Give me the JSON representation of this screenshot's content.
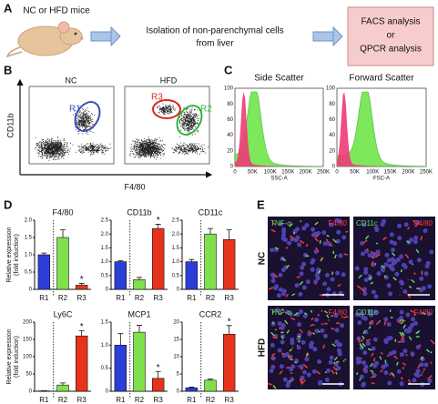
{
  "panels": {
    "A": {
      "letter": "A",
      "source": "NC or HFD mice",
      "step": [
        "Isolation of non-parenchymal cells",
        "from liver"
      ],
      "result": [
        "FACS analysis",
        "or",
        "QPCR analysis"
      ]
    },
    "B": {
      "letter": "B",
      "groups": [
        "NC",
        "HFD"
      ],
      "y_axis": "CD11b",
      "x_axis": "F4/80",
      "gates": [
        "R1",
        "R3",
        "R2"
      ]
    },
    "C": {
      "letter": "C",
      "plots": [
        {
          "title": "Side Scatter",
          "x_axis": "SSC-A"
        },
        {
          "title": "Forward Scatter",
          "x_axis": "FSC-A"
        }
      ],
      "yticks": [
        "0",
        "20",
        "40",
        "60",
        "80",
        "100"
      ],
      "xticks": [
        "0",
        "50K",
        "100K",
        "150K",
        "200K",
        "250K"
      ]
    },
    "D": {
      "letter": "D"
    },
    "E": {
      "letter": "E",
      "rows": [
        "NC",
        "HFD"
      ],
      "stains": [
        [
          "TNF-α",
          "F4/80"
        ],
        [
          "CD11c",
          "F4/80"
        ]
      ]
    }
  },
  "chart_data": [
    {
      "type": "bar",
      "title": "F4/80",
      "ylabel": [
        "Relative expression",
        "(fold induction)"
      ],
      "categories": [
        "R1",
        "R2",
        "R3"
      ],
      "values": [
        1.0,
        1.5,
        0.12
      ],
      "errors": [
        0.05,
        0.22,
        0.05
      ],
      "significance": [
        null,
        null,
        "*"
      ],
      "colors": [
        "#2b3fd8",
        "#80e04c",
        "#e6341c"
      ],
      "ylim": [
        0,
        2
      ],
      "yticks": [
        0,
        0.5,
        {
          "value": 1,
          "label": "1.0"
        },
        1.5,
        {
          "value": 2,
          "label": "2.0"
        }
      ]
    },
    {
      "type": "bar",
      "title": "CD11b",
      "categories": [
        "R1",
        "R2",
        "R3"
      ],
      "values": [
        1.0,
        0.35,
        2.2
      ],
      "errors": [
        0.03,
        0.08,
        0.15
      ],
      "significance": [
        null,
        null,
        "*"
      ],
      "colors": [
        "#2b3fd8",
        "#80e04c",
        "#e6341c"
      ],
      "ylim": [
        0,
        2.5
      ],
      "yticks": [
        0,
        0.5,
        {
          "value": 1,
          "label": "1.0"
        },
        1.5,
        {
          "value": 2,
          "label": "2.0"
        },
        2.5
      ]
    },
    {
      "type": "bar",
      "title": "CD11c",
      "categories": [
        "R1",
        "R2",
        "R3"
      ],
      "values": [
        1.0,
        2.0,
        1.8
      ],
      "errors": [
        0.08,
        0.2,
        0.35
      ],
      "significance": [
        null,
        null,
        null
      ],
      "colors": [
        "#2b3fd8",
        "#80e04c",
        "#e6341c"
      ],
      "ylim": [
        0,
        2.5
      ],
      "yticks": [
        0,
        0.5,
        {
          "value": 1,
          "label": "1.0"
        },
        1.5,
        {
          "value": 2,
          "label": "2.0"
        },
        2.5
      ]
    },
    {
      "type": "bar",
      "title": "Ly6C",
      "ylabel": [
        "Relative expression",
        "(fold induction)"
      ],
      "categories": [
        "R1",
        "R2",
        "R3"
      ],
      "values": [
        1,
        18,
        160
      ],
      "errors": [
        0.5,
        6,
        15
      ],
      "significance": [
        null,
        null,
        "*"
      ],
      "colors": [
        "#2b3fd8",
        "#80e04c",
        "#e6341c"
      ],
      "ylim": [
        0,
        200
      ],
      "yticks": [
        0,
        50,
        100,
        150,
        200
      ]
    },
    {
      "type": "bar",
      "title": "MCP1",
      "categories": [
        "R1",
        "R2",
        "R3"
      ],
      "values": [
        1.0,
        1.28,
        0.28
      ],
      "errors": [
        0.25,
        0.15,
        0.15
      ],
      "significance": [
        null,
        null,
        "*"
      ],
      "colors": [
        "#2b3fd8",
        "#80e04c",
        "#e6341c"
      ],
      "ylim": [
        0,
        1.5
      ],
      "yticks": [
        0,
        0.5,
        {
          "value": 1,
          "label": "1.0"
        },
        1.5
      ]
    },
    {
      "type": "bar",
      "title": "CCR2",
      "categories": [
        "R1",
        "R2",
        "R3"
      ],
      "values": [
        1,
        3.2,
        16.5
      ],
      "errors": [
        0.2,
        0.3,
        2.5
      ],
      "significance": [
        null,
        null,
        "*"
      ],
      "colors": [
        "#2b3fd8",
        "#80e04c",
        "#e6341c"
      ],
      "ylim": [
        0,
        20
      ],
      "yticks": [
        0,
        5,
        10,
        15,
        20
      ]
    }
  ]
}
